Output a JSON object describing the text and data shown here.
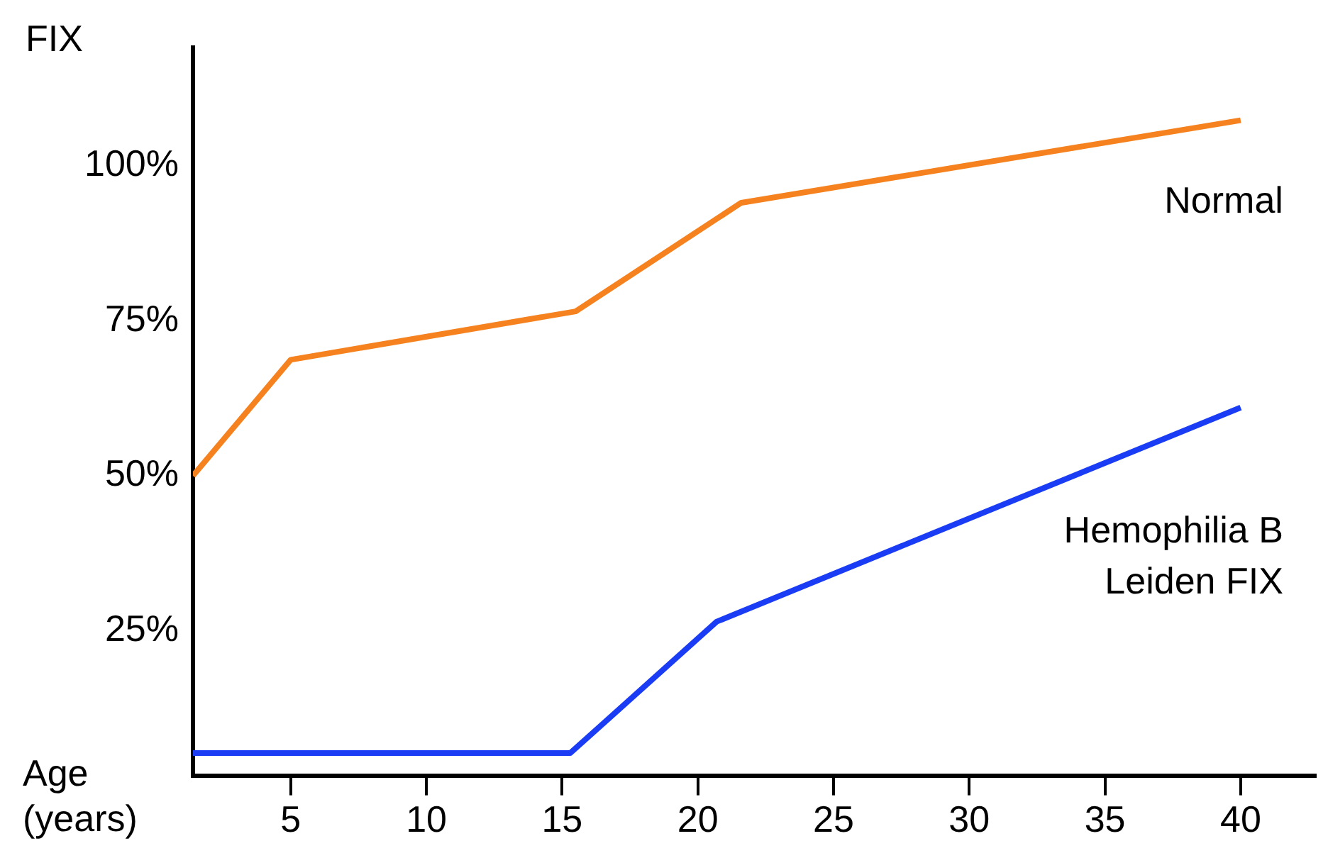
{
  "chart_data": {
    "type": "line",
    "xlabel": "Age (years)",
    "ylabel": "FIX",
    "xlim": [
      1.4,
      42.8
    ],
    "xticks": [
      5,
      10,
      15,
      20,
      25,
      30,
      35,
      40
    ],
    "ylim": [
      1.7,
      119
    ],
    "yticks": [
      {
        "value": 25,
        "label": "25%"
      },
      {
        "value": 50,
        "label": "50%"
      },
      {
        "value": 75,
        "label": "75%"
      },
      {
        "value": 100,
        "label": "100%"
      }
    ],
    "grid": false,
    "legend": false,
    "marker": "none",
    "line_style": "solid",
    "series": [
      {
        "name": "Normal",
        "color": "#f5821f",
        "x": [
          1.4,
          5,
          15.5,
          21.6,
          40
        ],
        "values": [
          50,
          68.7,
          76.5,
          94,
          107.3
        ]
      },
      {
        "name": "Hemophilia B Leiden FIX",
        "color": "#1a3cf5",
        "x": [
          1.4,
          15.3,
          20.7,
          40
        ],
        "values": [
          5.3,
          5.3,
          26.5,
          61
        ]
      }
    ]
  }
}
